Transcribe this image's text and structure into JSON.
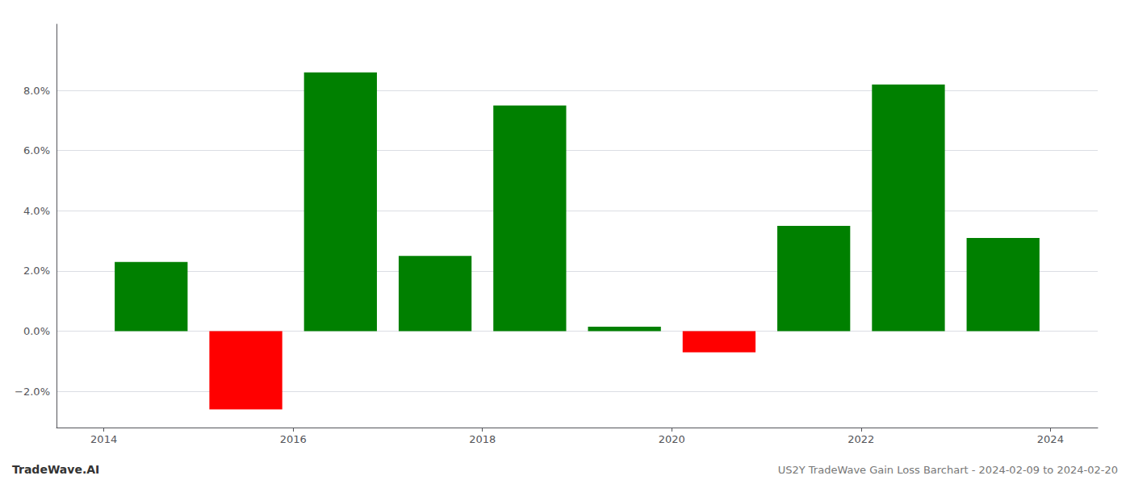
{
  "chart_data": {
    "type": "bar",
    "title": "US2Y TradeWave Gain Loss Barchart - 2024-02-09 to 2024-02-20",
    "annotations": [
      "TradeWave.AI"
    ],
    "x": [
      2014.5,
      2015.5,
      2016.5,
      2017.5,
      2018.5,
      2019.5,
      2020.5,
      2021.5,
      2022.5,
      2023.5
    ],
    "values": [
      0.023,
      -0.026,
      0.086,
      0.025,
      0.075,
      0.0015,
      -0.007,
      0.035,
      0.082,
      0.031
    ],
    "colors": [
      "#008000",
      "#ff0000",
      "#008000",
      "#008000",
      "#008000",
      "#008000",
      "#ff0000",
      "#008000",
      "#008000",
      "#008000"
    ],
    "xlim": [
      2013.5,
      2024.5
    ],
    "xticks": [
      2014,
      2016,
      2018,
      2020,
      2022,
      2024
    ],
    "ylim": [
      -0.032,
      0.102
    ],
    "yticks": [
      {
        "value": -0.02,
        "label": "−2.0%"
      },
      {
        "value": 0.0,
        "label": "0.0%"
      },
      {
        "value": 0.02,
        "label": "2.0%"
      },
      {
        "value": 0.04,
        "label": "4.0%"
      },
      {
        "value": 0.06,
        "label": "6.0%"
      },
      {
        "value": 0.08,
        "label": "8.0%"
      }
    ],
    "grid": true
  }
}
